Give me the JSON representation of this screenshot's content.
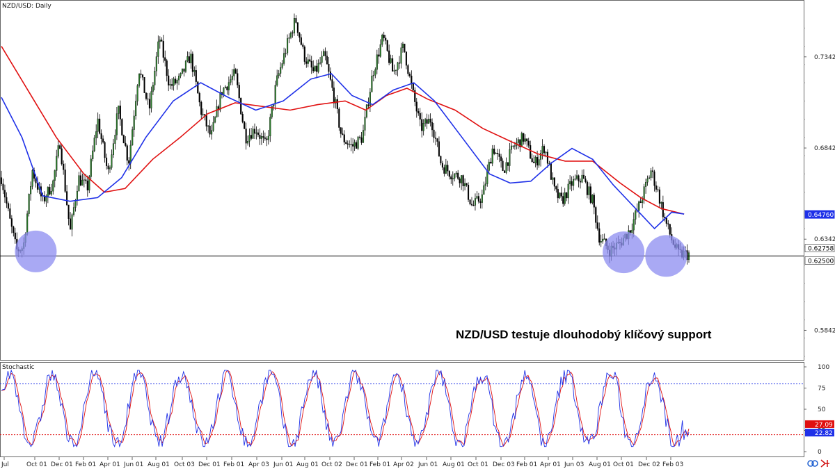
{
  "chart_data": [
    {
      "type": "candlestick",
      "title": "NZD/USD: Daily",
      "annotation": "NZD/USD testuje dlouhodobý klíčový support",
      "ylim": [
        0.568,
        0.765
      ],
      "yticks": [
        "0.73421",
        "0.68421",
        "0.63421",
        "0.58421"
      ],
      "ytick_values": [
        0.73421,
        0.68421,
        0.63421,
        0.58421
      ],
      "price_labels": [
        {
          "text": "0.64760",
          "value": 0.6476,
          "color": "#1e30e8"
        },
        {
          "text": "0.62758",
          "value": 0.62758,
          "color": "#ffffff"
        },
        {
          "text": "0.62500",
          "value": 0.625,
          "color": "#ffffff"
        }
      ],
      "support_level": 0.625,
      "colors": {
        "up": "#2b7a2b",
        "down": "#000000",
        "ma_fast": "#1e30e8",
        "ma_slow": "#e01010",
        "support_circle": "#8c8cf0"
      },
      "support_touches": [
        {
          "date_index": 0.05,
          "price": 0.6275
        },
        {
          "date_index": 0.905,
          "price": 0.627
        },
        {
          "date_index": 0.967,
          "price": 0.625
        }
      ],
      "price_path": [
        [
          0.0,
          0.668
        ],
        [
          0.012,
          0.645
        ],
        [
          0.022,
          0.628
        ],
        [
          0.032,
          0.63
        ],
        [
          0.045,
          0.672
        ],
        [
          0.06,
          0.655
        ],
        [
          0.075,
          0.665
        ],
        [
          0.085,
          0.688
        ],
        [
          0.1,
          0.638
        ],
        [
          0.112,
          0.668
        ],
        [
          0.125,
          0.662
        ],
        [
          0.14,
          0.7
        ],
        [
          0.155,
          0.67
        ],
        [
          0.17,
          0.705
        ],
        [
          0.185,
          0.676
        ],
        [
          0.2,
          0.728
        ],
        [
          0.215,
          0.705
        ],
        [
          0.23,
          0.745
        ],
        [
          0.245,
          0.718
        ],
        [
          0.26,
          0.722
        ],
        [
          0.275,
          0.735
        ],
        [
          0.29,
          0.705
        ],
        [
          0.305,
          0.69
        ],
        [
          0.32,
          0.715
        ],
        [
          0.34,
          0.725
        ],
        [
          0.355,
          0.69
        ],
        [
          0.37,
          0.695
        ],
        [
          0.385,
          0.685
        ],
        [
          0.4,
          0.72
        ],
        [
          0.415,
          0.74
        ],
        [
          0.428,
          0.755
        ],
        [
          0.44,
          0.735
        ],
        [
          0.455,
          0.725
        ],
        [
          0.47,
          0.735
        ],
        [
          0.485,
          0.71
        ],
        [
          0.495,
          0.69
        ],
        [
          0.51,
          0.685
        ],
        [
          0.525,
          0.69
        ],
        [
          0.54,
          0.725
        ],
        [
          0.555,
          0.745
        ],
        [
          0.57,
          0.725
        ],
        [
          0.585,
          0.74
        ],
        [
          0.598,
          0.715
        ],
        [
          0.61,
          0.695
        ],
        [
          0.625,
          0.7
        ],
        [
          0.64,
          0.675
        ],
        [
          0.655,
          0.67
        ],
        [
          0.67,
          0.668
        ],
        [
          0.685,
          0.652
        ],
        [
          0.7,
          0.658
        ],
        [
          0.715,
          0.685
        ],
        [
          0.73,
          0.672
        ],
        [
          0.745,
          0.685
        ],
        [
          0.76,
          0.69
        ],
        [
          0.775,
          0.675
        ],
        [
          0.79,
          0.685
        ],
        [
          0.805,
          0.66
        ],
        [
          0.815,
          0.655
        ],
        [
          0.83,
          0.665
        ],
        [
          0.845,
          0.668
        ],
        [
          0.86,
          0.655
        ],
        [
          0.87,
          0.635
        ],
        [
          0.885,
          0.628
        ],
        [
          0.9,
          0.632
        ],
        [
          0.915,
          0.64
        ],
        [
          0.93,
          0.655
        ],
        [
          0.945,
          0.672
        ],
        [
          0.955,
          0.66
        ],
        [
          0.965,
          0.645
        ],
        [
          0.975,
          0.634
        ],
        [
          0.985,
          0.626
        ]
      ],
      "ma_fast_path": [
        [
          0.0,
          0.712
        ],
        [
          0.03,
          0.69
        ],
        [
          0.06,
          0.658
        ],
        [
          0.1,
          0.655
        ],
        [
          0.14,
          0.657
        ],
        [
          0.175,
          0.668
        ],
        [
          0.21,
          0.69
        ],
        [
          0.25,
          0.71
        ],
        [
          0.29,
          0.72
        ],
        [
          0.33,
          0.712
        ],
        [
          0.37,
          0.705
        ],
        [
          0.41,
          0.71
        ],
        [
          0.45,
          0.722
        ],
        [
          0.48,
          0.725
        ],
        [
          0.51,
          0.713
        ],
        [
          0.54,
          0.708
        ],
        [
          0.57,
          0.716
        ],
        [
          0.6,
          0.72
        ],
        [
          0.63,
          0.71
        ],
        [
          0.67,
          0.69
        ],
        [
          0.71,
          0.67
        ],
        [
          0.74,
          0.665
        ],
        [
          0.77,
          0.666
        ],
        [
          0.8,
          0.676
        ],
        [
          0.83,
          0.684
        ],
        [
          0.86,
          0.678
        ],
        [
          0.89,
          0.664
        ],
        [
          0.92,
          0.652
        ],
        [
          0.95,
          0.64
        ],
        [
          0.975,
          0.649
        ],
        [
          0.993,
          0.648
        ]
      ],
      "ma_slow_path": [
        [
          0.0,
          0.74
        ],
        [
          0.04,
          0.715
        ],
        [
          0.08,
          0.69
        ],
        [
          0.12,
          0.67
        ],
        [
          0.15,
          0.66
        ],
        [
          0.18,
          0.662
        ],
        [
          0.22,
          0.678
        ],
        [
          0.26,
          0.69
        ],
        [
          0.3,
          0.703
        ],
        [
          0.34,
          0.709
        ],
        [
          0.38,
          0.707
        ],
        [
          0.42,
          0.705
        ],
        [
          0.46,
          0.708
        ],
        [
          0.5,
          0.71
        ],
        [
          0.53,
          0.705
        ],
        [
          0.56,
          0.713
        ],
        [
          0.59,
          0.717
        ],
        [
          0.62,
          0.711
        ],
        [
          0.66,
          0.705
        ],
        [
          0.7,
          0.695
        ],
        [
          0.74,
          0.688
        ],
        [
          0.78,
          0.681
        ],
        [
          0.82,
          0.677
        ],
        [
          0.86,
          0.677
        ],
        [
          0.9,
          0.665
        ],
        [
          0.93,
          0.657
        ],
        [
          0.96,
          0.651
        ],
        [
          0.993,
          0.648
        ]
      ]
    },
    {
      "type": "line",
      "title": "Stochastic",
      "ylim": [
        0,
        100
      ],
      "yticks": [
        "100",
        "75",
        "50",
        "25",
        "0"
      ],
      "ytick_values": [
        100,
        75,
        50,
        25,
        0
      ],
      "levels": [
        80,
        20
      ],
      "value_labels": [
        {
          "text": "27.09",
          "value": 27.09,
          "color": "#e01010"
        },
        {
          "text": "22.82",
          "value": 22.82,
          "color": "#1e30e8"
        }
      ],
      "colors": {
        "k": "#1e30e8",
        "d": "#e01010",
        "upper_level": "#1e30e8",
        "lower_level": "#e01010"
      }
    }
  ],
  "xaxis": {
    "tick_labels": [
      "Jul",
      "Oct 01",
      "Dec 01",
      "Feb 01",
      "Apr 01",
      "Jun 01",
      "Aug 01",
      "Oct 03",
      "Dec 01",
      "Feb 01",
      "Apr 03",
      "Jun 01",
      "Aug 01",
      "Oct 02",
      "Dec 01",
      "Feb 01",
      "Apr 02",
      "Jun 01",
      "Aug 01",
      "Oct 01",
      "Dec 03",
      "Feb 01",
      "Apr 01",
      "Jun 03",
      "Aug 01",
      "Oct 01",
      "Dec 02",
      "Feb 03"
    ]
  },
  "icons": {
    "sync": "link-icon",
    "scroll": "scroll-right-icon"
  }
}
